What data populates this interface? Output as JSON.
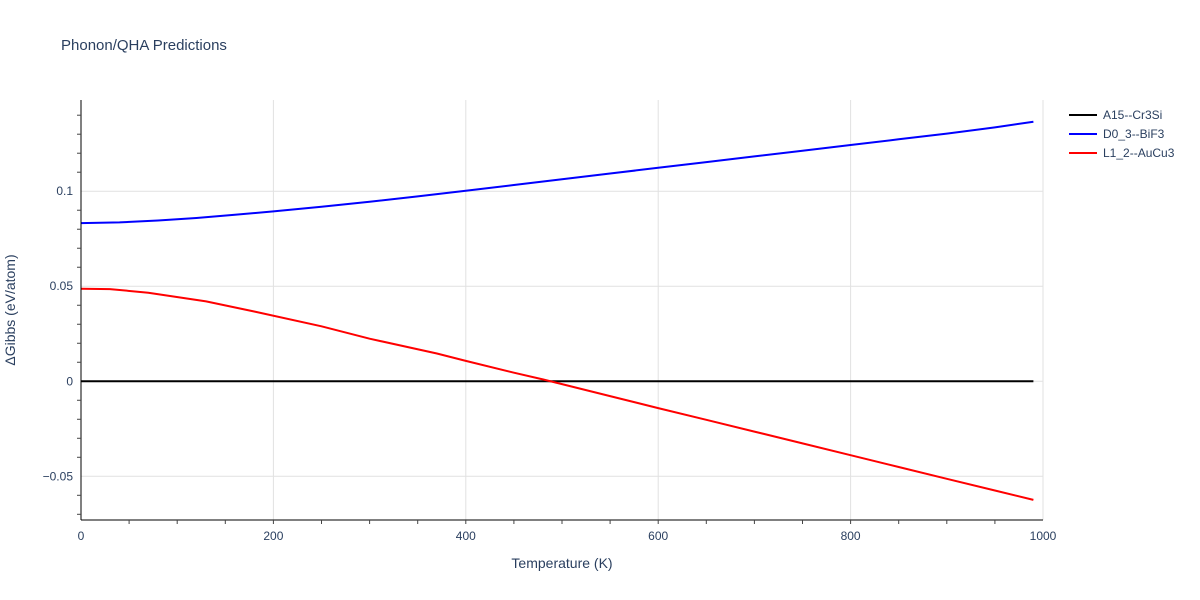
{
  "chart_data": {
    "type": "line",
    "title": "Phonon/QHA Predictions",
    "xlabel": "Temperature (K)",
    "ylabel": "ΔGibbs (eV/atom)",
    "xlim": [
      0,
      1000
    ],
    "ylim": [
      -0.073,
      0.148
    ],
    "x_ticks": [
      0,
      200,
      400,
      600,
      800,
      1000
    ],
    "x_tick_labels": [
      "0",
      "200",
      "400",
      "600",
      "800",
      "1000"
    ],
    "y_ticks": [
      -0.05,
      0,
      0.05,
      0.1
    ],
    "y_tick_labels": [
      "−0.05",
      "0",
      "0.05",
      "0.1"
    ],
    "grid": true,
    "legend_position": "top-right outside",
    "series": [
      {
        "name": "A15--Cr3Si",
        "color": "#000000",
        "x": [
          0,
          990
        ],
        "y": [
          0,
          0
        ]
      },
      {
        "name": "D0_3--BiF3",
        "color": "#0000ff",
        "x": [
          0,
          40,
          80,
          120,
          160,
          200,
          250,
          300,
          350,
          400,
          450,
          500,
          550,
          600,
          650,
          700,
          750,
          800,
          850,
          900,
          950,
          990
        ],
        "y": [
          0.0832,
          0.0836,
          0.0846,
          0.0859,
          0.0876,
          0.0894,
          0.0918,
          0.0945,
          0.0973,
          0.1003,
          0.1033,
          0.1063,
          0.1093,
          0.1123,
          0.1153,
          0.1183,
          0.1213,
          0.1243,
          0.1273,
          0.1303,
          0.1336,
          0.1366
        ]
      },
      {
        "name": "L1_2--AuCu3",
        "color": "#ff0000",
        "x": [
          0,
          30,
          70,
          130,
          180,
          250,
          300,
          370,
          400,
          450,
          480,
          500,
          550,
          600,
          650,
          700,
          750,
          800,
          850,
          900,
          950,
          990
        ],
        "y": [
          0.0487,
          0.0485,
          0.0466,
          0.042,
          0.0367,
          0.0289,
          0.0224,
          0.0146,
          0.0107,
          0.0045,
          0.001,
          -0.0015,
          -0.0078,
          -0.0141,
          -0.0203,
          -0.0265,
          -0.0327,
          -0.0389,
          -0.0451,
          -0.0513,
          -0.0575,
          -0.0624
        ]
      }
    ]
  }
}
